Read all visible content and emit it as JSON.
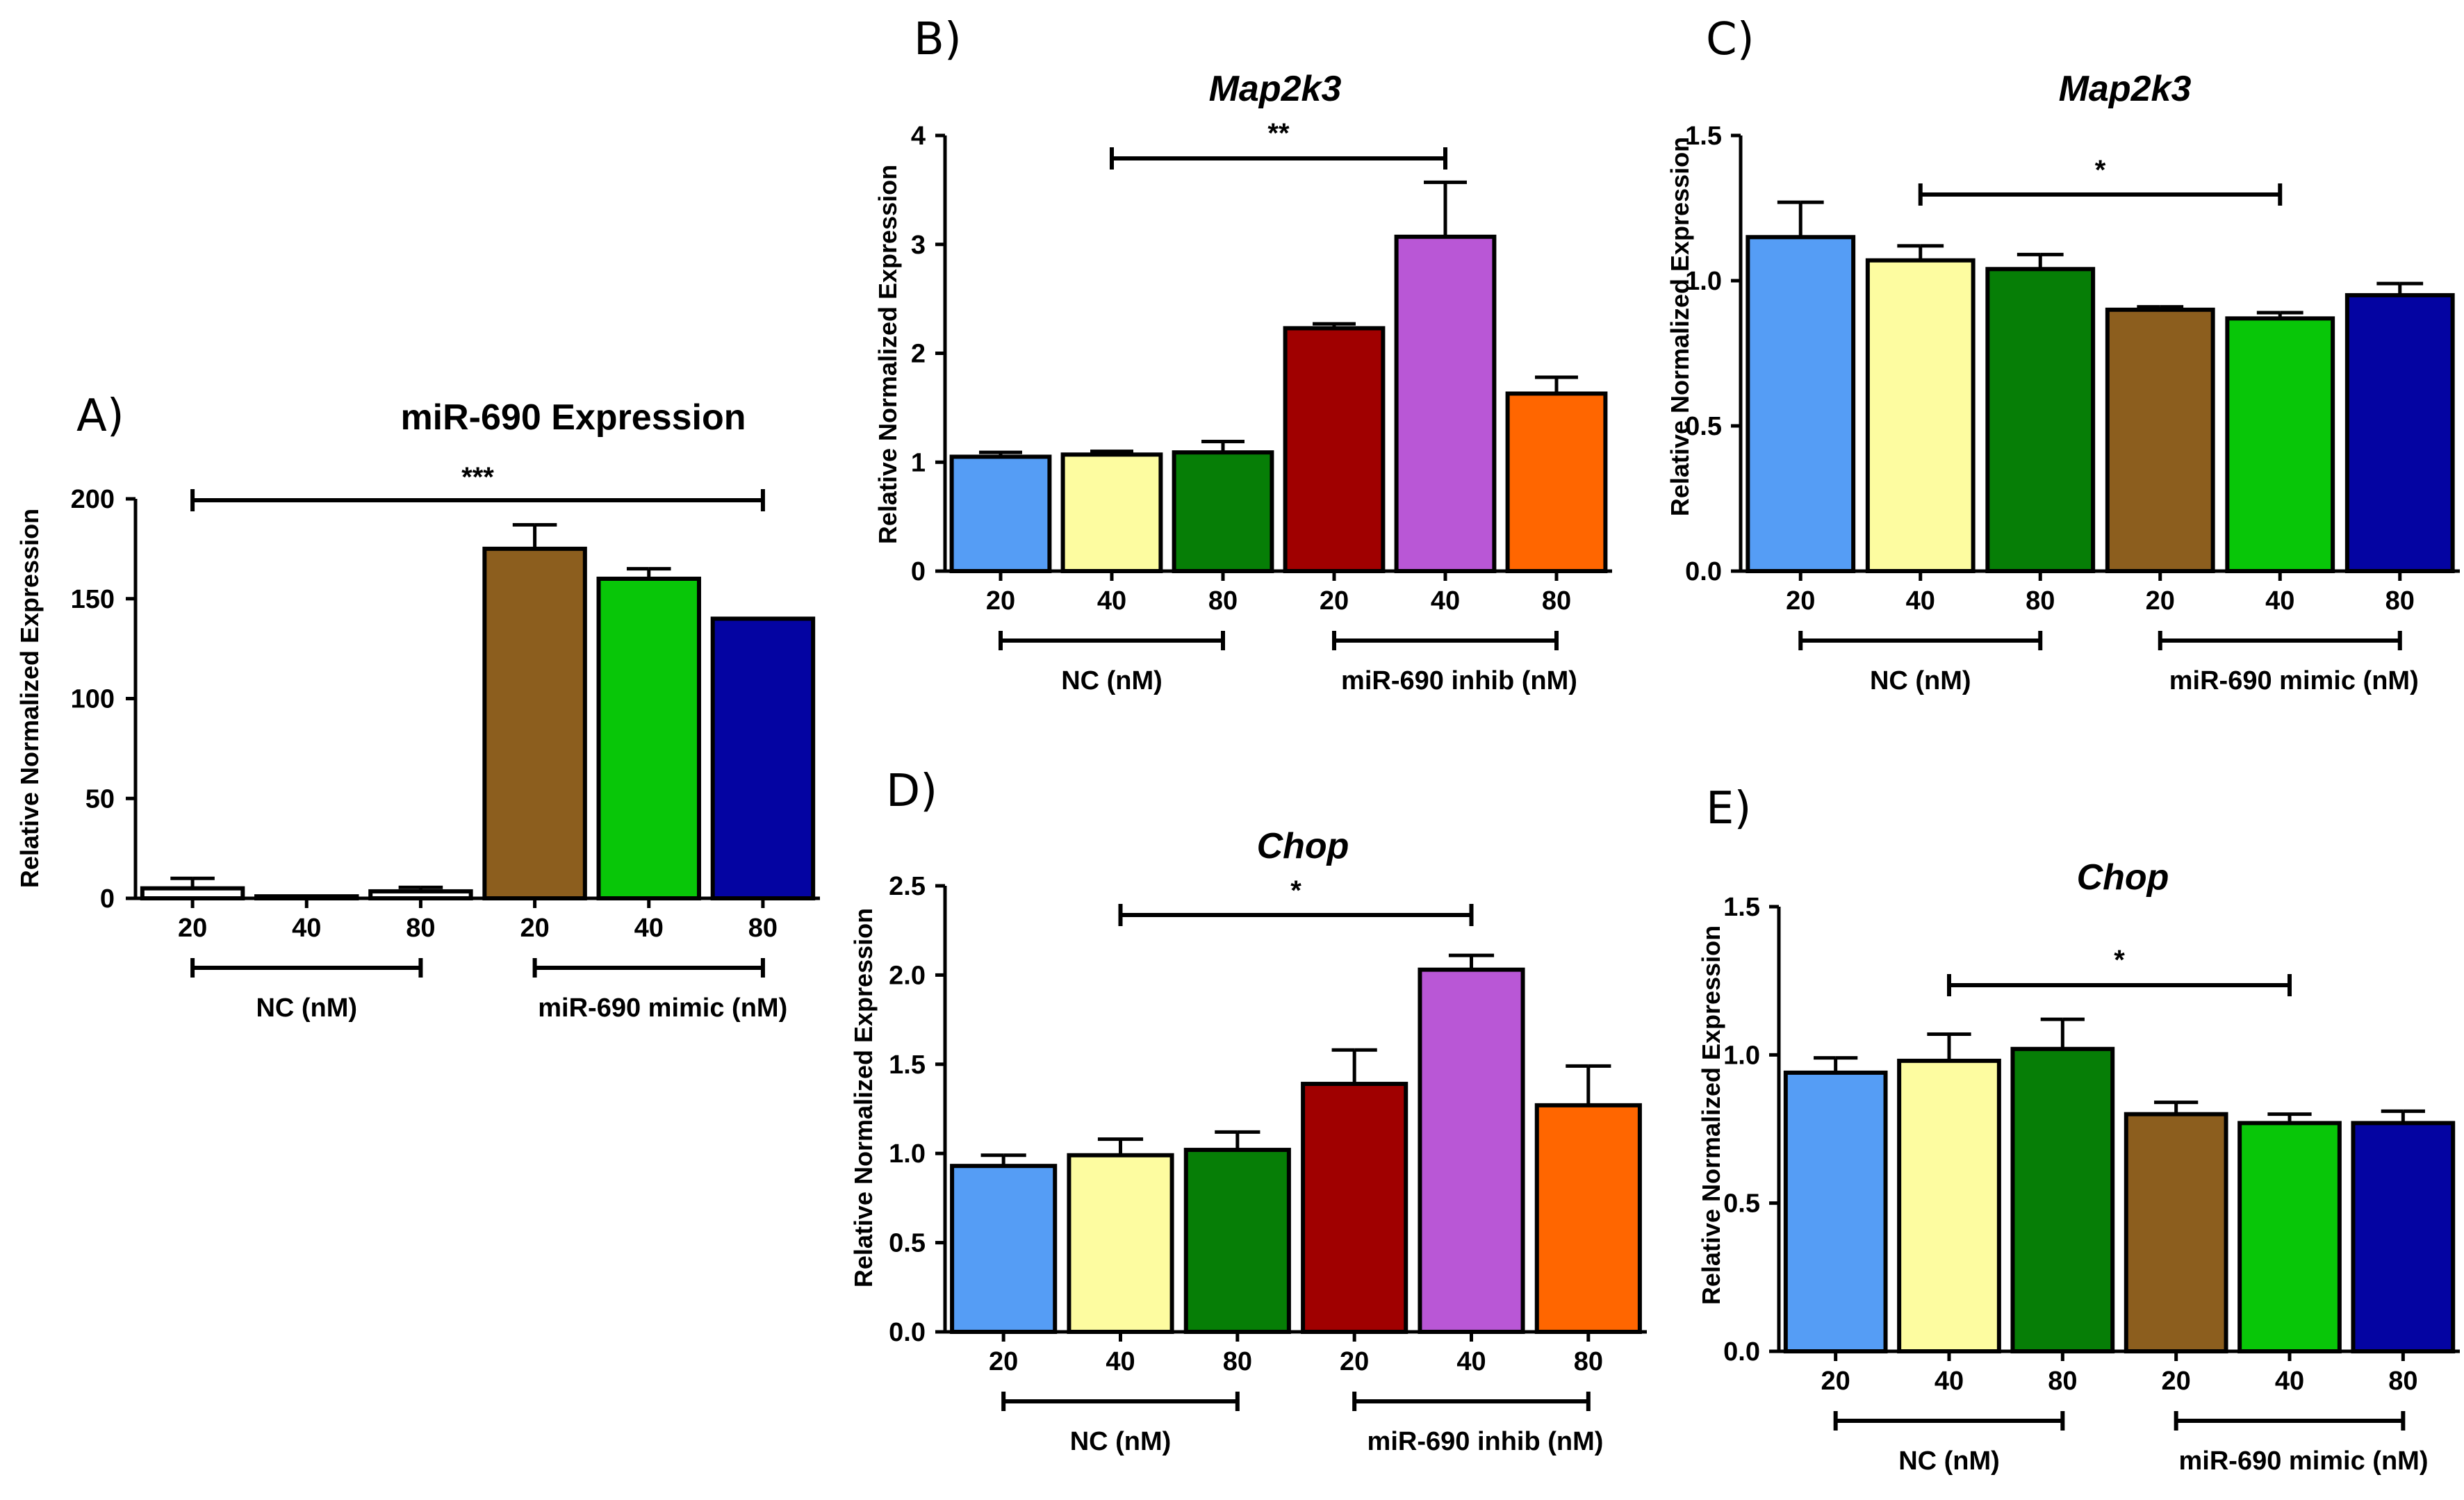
{
  "figure": {
    "panels": [
      "A)",
      "B)",
      "C)",
      "D)",
      "E)"
    ]
  },
  "colors": {
    "nc_20": "#559df5",
    "nc_40": "#fdfca0",
    "nc_80": "#067e06",
    "inhib_20": "#a00000",
    "inhib_40": "#b957d6",
    "inhib_80": "#ff6600",
    "mimic_20": "#8c5e1e",
    "mimic_40": "#08c608",
    "mimic_80": "#0404a2",
    "white": "#ffffff"
  },
  "chart_data": [
    {
      "panel": "A)",
      "type": "bar",
      "title": "miR-690 Expression",
      "title_italic": false,
      "ylabel": "Relative Normalized Expression",
      "ylim": [
        0,
        200
      ],
      "yticks": [
        "0",
        "50",
        "100",
        "150",
        "200"
      ],
      "ytick_values": [
        0,
        50,
        100,
        150,
        200
      ],
      "categories": [
        "20",
        "40",
        "80",
        "20",
        "40",
        "80"
      ],
      "values": [
        5,
        1,
        3.5,
        175,
        160,
        140
      ],
      "errors": [
        5,
        0,
        2,
        12,
        5,
        0
      ],
      "bar_colors": [
        "white",
        "white",
        "white",
        "mimic_20",
        "mimic_40",
        "mimic_80"
      ],
      "groups": [
        {
          "label": "NC (nM)",
          "from": 0,
          "to": 2
        },
        {
          "label": "miR-690 mimic (nM)",
          "from": 3,
          "to": 5
        }
      ],
      "significance": {
        "label": "***",
        "from": 0,
        "to": 5
      }
    },
    {
      "panel": "B)",
      "type": "bar",
      "title": "Map2k3",
      "title_italic": true,
      "ylabel": "Relative Normalized Expression",
      "ylim": [
        0,
        4
      ],
      "yticks": [
        "0",
        "1",
        "2",
        "3",
        "4"
      ],
      "ytick_values": [
        0,
        1,
        2,
        3,
        4
      ],
      "categories": [
        "20",
        "40",
        "80",
        "20",
        "40",
        "80"
      ],
      "values": [
        1.05,
        1.07,
        1.09,
        2.23,
        3.07,
        1.63
      ],
      "errors": [
        0.04,
        0.03,
        0.1,
        0.04,
        0.5,
        0.15
      ],
      "bar_colors": [
        "nc_20",
        "nc_40",
        "nc_80",
        "inhib_20",
        "inhib_40",
        "inhib_80"
      ],
      "groups": [
        {
          "label": "NC (nM)",
          "from": 0,
          "to": 2
        },
        {
          "label": "miR-690 inhib (nM)",
          "from": 3,
          "to": 5
        }
      ],
      "significance": {
        "label": "**",
        "from": 1,
        "to": 4
      }
    },
    {
      "panel": "C)",
      "type": "bar",
      "title": "Map2k3",
      "title_italic": true,
      "ylabel": "Relative Normalized Expression",
      "ylim": [
        0,
        1.5
      ],
      "yticks": [
        "0.0",
        "0.5",
        "1.0",
        "1.5"
      ],
      "ytick_values": [
        0,
        0.5,
        1.0,
        1.5
      ],
      "categories": [
        "20",
        "40",
        "80",
        "20",
        "40",
        "80"
      ],
      "values": [
        1.15,
        1.07,
        1.04,
        0.9,
        0.87,
        0.95
      ],
      "errors": [
        0.12,
        0.05,
        0.05,
        0.01,
        0.02,
        0.04
      ],
      "bar_colors": [
        "nc_20",
        "nc_40",
        "nc_80",
        "mimic_20",
        "mimic_40",
        "mimic_80"
      ],
      "groups": [
        {
          "label": "NC (nM)",
          "from": 0,
          "to": 2
        },
        {
          "label": "miR-690 mimic (nM)",
          "from": 3,
          "to": 5
        }
      ],
      "significance": {
        "label": "*",
        "from": 1,
        "to": 4
      }
    },
    {
      "panel": "D)",
      "type": "bar",
      "title": "Chop",
      "title_italic": true,
      "ylabel": "Relative Normalized Expression",
      "ylim": [
        0,
        2.5
      ],
      "yticks": [
        "0.0",
        "0.5",
        "1.0",
        "1.5",
        "2.0",
        "2.5"
      ],
      "ytick_values": [
        0,
        0.5,
        1.0,
        1.5,
        2.0,
        2.5
      ],
      "categories": [
        "20",
        "40",
        "80",
        "20",
        "40",
        "80"
      ],
      "values": [
        0.93,
        0.99,
        1.02,
        1.39,
        2.03,
        1.27
      ],
      "errors": [
        0.06,
        0.09,
        0.1,
        0.19,
        0.08,
        0.22
      ],
      "bar_colors": [
        "nc_20",
        "nc_40",
        "nc_80",
        "inhib_20",
        "inhib_40",
        "inhib_80"
      ],
      "groups": [
        {
          "label": "NC (nM)",
          "from": 0,
          "to": 2
        },
        {
          "label": "miR-690 inhib (nM)",
          "from": 3,
          "to": 5
        }
      ],
      "significance": {
        "label": "*",
        "from": 1,
        "to": 4
      }
    },
    {
      "panel": "E)",
      "type": "bar",
      "title": "Chop",
      "title_italic": true,
      "ylabel": "Relative Normalized Expression",
      "ylim": [
        0,
        1.5
      ],
      "yticks": [
        "0.0",
        "0.5",
        "1.0",
        "1.5"
      ],
      "ytick_values": [
        0,
        0.5,
        1.0,
        1.5
      ],
      "categories": [
        "20",
        "40",
        "80",
        "20",
        "40",
        "80"
      ],
      "values": [
        0.94,
        0.98,
        1.02,
        0.8,
        0.77,
        0.77
      ],
      "errors": [
        0.05,
        0.09,
        0.1,
        0.04,
        0.03,
        0.04
      ],
      "bar_colors": [
        "nc_20",
        "nc_40",
        "nc_80",
        "mimic_20",
        "mimic_40",
        "mimic_80"
      ],
      "groups": [
        {
          "label": "NC (nM)",
          "from": 0,
          "to": 2
        },
        {
          "label": "miR-690 mimic (nM)",
          "from": 3,
          "to": 5
        }
      ],
      "significance": {
        "label": "*",
        "from": 1,
        "to": 4
      }
    }
  ]
}
